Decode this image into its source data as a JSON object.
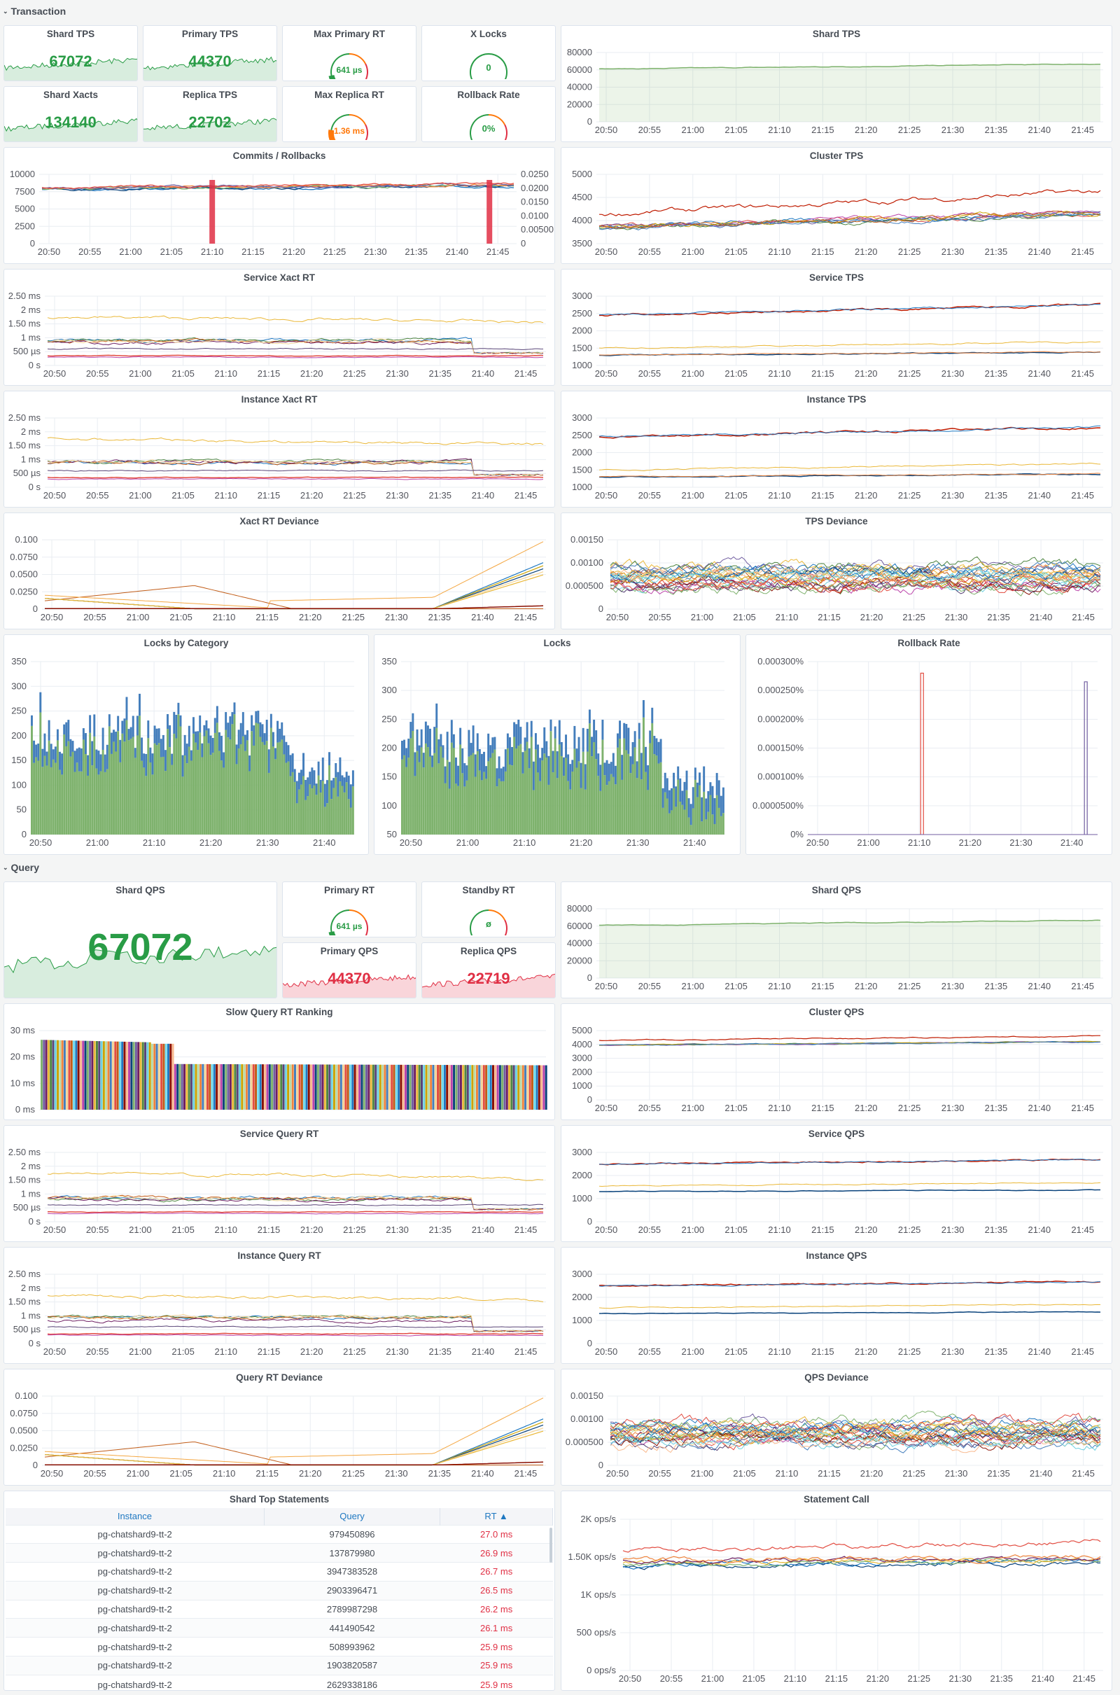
{
  "colors": {
    "green": "#299c46",
    "red": "#e02f44",
    "orange": "#ff780a",
    "blue": "#1f78c1",
    "grid": "#e9edf2",
    "axis": "#52545c"
  },
  "rows": {
    "transaction": "Transaction",
    "query": "Query",
    "collapse_icon": "chevron-down-icon"
  },
  "time_ticks": [
    "20:50",
    "20:55",
    "21:00",
    "21:05",
    "21:10",
    "21:15",
    "21:20",
    "21:25",
    "21:30",
    "21:35",
    "21:40",
    "21:45"
  ],
  "time_ticks_10m": [
    "20:50",
    "21:00",
    "21:10",
    "21:20",
    "21:30",
    "21:40"
  ],
  "transaction": {
    "stats": {
      "shard_tps": {
        "title": "Shard TPS",
        "value": "67072"
      },
      "primary_tps": {
        "title": "Primary TPS",
        "value": "44370"
      },
      "max_primary_rt": {
        "title": "Max Primary RT",
        "value": "641 µs"
      },
      "x_locks": {
        "title": "X Locks",
        "value": "0"
      },
      "shard_xacts": {
        "title": "Shard Xacts",
        "value": "134140"
      },
      "replica_tps": {
        "title": "Replica TPS",
        "value": "22702"
      },
      "max_replica_rt": {
        "title": "Max Replica RT",
        "value": "1.36 ms"
      },
      "rollback_rate": {
        "title": "Rollback Rate",
        "value": "0%"
      }
    },
    "charts": {
      "shard_tps": {
        "title": "Shard TPS"
      },
      "commits_rollbacks": {
        "title": "Commits / Rollbacks"
      },
      "cluster_tps": {
        "title": "Cluster TPS"
      },
      "service_xact_rt": {
        "title": "Service Xact RT"
      },
      "service_tps": {
        "title": "Service TPS"
      },
      "instance_xact_rt": {
        "title": "Instance Xact RT"
      },
      "instance_tps": {
        "title": "Instance TPS"
      },
      "xact_rt_deviance": {
        "title": "Xact RT Deviance"
      },
      "tps_deviance": {
        "title": "TPS Deviance"
      },
      "locks_by_category": {
        "title": "Locks by Category"
      },
      "locks": {
        "title": "Locks"
      },
      "rollback_rate": {
        "title": "Rollback Rate"
      }
    }
  },
  "query": {
    "stats": {
      "shard_qps": {
        "title": "Shard QPS",
        "value": "67072"
      },
      "primary_rt": {
        "title": "Primary RT",
        "value": "641 µs"
      },
      "standby_rt": {
        "title": "Standby RT",
        "value": "ø"
      },
      "primary_qps": {
        "title": "Primary QPS",
        "value": "44370"
      },
      "replica_qps": {
        "title": "Replica QPS",
        "value": "22719"
      }
    },
    "charts": {
      "shard_qps": {
        "title": "Shard QPS"
      },
      "slow_query_rt_ranking": {
        "title": "Slow Query RT Ranking"
      },
      "cluster_qps": {
        "title": "Cluster QPS"
      },
      "service_query_rt": {
        "title": "Service Query RT"
      },
      "service_qps": {
        "title": "Service QPS"
      },
      "instance_query_rt": {
        "title": "Instance Query RT"
      },
      "instance_qps": {
        "title": "Instance QPS"
      },
      "query_rt_deviance": {
        "title": "Query RT Deviance"
      },
      "qps_deviance": {
        "title": "QPS Deviance"
      },
      "statement_call": {
        "title": "Statement Call"
      }
    },
    "top_statements": {
      "title": "Shard Top Statements",
      "columns": [
        "Instance",
        "Query",
        "RT ▲"
      ],
      "rows": [
        [
          "pg-chatshard9-tt-2",
          "979450896",
          "27.0 ms"
        ],
        [
          "pg-chatshard9-tt-2",
          "137879980",
          "26.9 ms"
        ],
        [
          "pg-chatshard9-tt-2",
          "3947383528",
          "26.7 ms"
        ],
        [
          "pg-chatshard9-tt-2",
          "2903396471",
          "26.5 ms"
        ],
        [
          "pg-chatshard9-tt-2",
          "2789987298",
          "26.2 ms"
        ],
        [
          "pg-chatshard9-tt-2",
          "441490542",
          "26.1 ms"
        ],
        [
          "pg-chatshard9-tt-2",
          "508993962",
          "25.9 ms"
        ],
        [
          "pg-chatshard9-tt-2",
          "1903820587",
          "25.9 ms"
        ],
        [
          "pg-chatshard9-tt-2",
          "2629338186",
          "25.9 ms"
        ]
      ]
    }
  },
  "chart_data": [
    {
      "type": "area",
      "title": "Shard TPS",
      "x": [
        "20:50",
        "21:45"
      ],
      "series": [
        {
          "values": [
            61000,
            67000
          ]
        }
      ],
      "yticks": [
        "0",
        "20000",
        "40000",
        "60000",
        "80000"
      ],
      "ylim": [
        0,
        80000
      ]
    },
    {
      "type": "line",
      "title": "Commits / Rollbacks",
      "series": [
        {
          "values": [
            7800,
            8400
          ]
        }
      ],
      "yticks": [
        "0",
        "2500",
        "5000",
        "7500",
        "10000"
      ],
      "ylim": [
        0,
        10000
      ],
      "y2ticks": [
        "0",
        "0.00500",
        "0.0100",
        "0.0150",
        "0.0200",
        "0.0250"
      ],
      "y2lim": [
        0,
        0.025
      ],
      "rollback_spikes_at": [
        "21:10",
        "21:44"
      ]
    },
    {
      "type": "line",
      "title": "Cluster TPS",
      "yticks": [
        "3500",
        "4000",
        "4500",
        "5000"
      ],
      "ylim": [
        3500,
        5000
      ]
    },
    {
      "type": "line",
      "title": "Service Xact RT",
      "yticks": [
        "0 s",
        "500 µs",
        "1 ms",
        "1.50 ms",
        "2 ms",
        "2.50 ms"
      ],
      "ylim": [
        0,
        2.5
      ]
    },
    {
      "type": "line",
      "title": "Service TPS",
      "yticks": [
        "1000",
        "1500",
        "2000",
        "2500",
        "3000"
      ],
      "ylim": [
        1000,
        3000
      ]
    },
    {
      "type": "line",
      "title": "Instance Xact RT",
      "yticks": [
        "0 s",
        "500 µs",
        "1 ms",
        "1.50 ms",
        "2 ms",
        "2.50 ms"
      ],
      "ylim": [
        0,
        2.5
      ]
    },
    {
      "type": "line",
      "title": "Instance TPS",
      "yticks": [
        "1000",
        "1500",
        "2000",
        "2500",
        "3000"
      ],
      "ylim": [
        1000,
        3000
      ]
    },
    {
      "type": "line",
      "title": "Xact RT Deviance",
      "yticks": [
        "0",
        "0.0250",
        "0.0500",
        "0.0750",
        "0.100"
      ],
      "ylim": [
        0,
        0.1
      ]
    },
    {
      "type": "line",
      "title": "TPS Deviance",
      "yticks": [
        "0",
        "0.000500",
        "0.00100",
        "0.00150"
      ],
      "ylim": [
        0,
        0.0015
      ]
    },
    {
      "type": "bar",
      "title": "Locks by Category",
      "yticks": [
        "0",
        "50",
        "100",
        "150",
        "200",
        "250",
        "300",
        "350"
      ],
      "ylim": [
        0,
        350
      ]
    },
    {
      "type": "bar",
      "title": "Locks",
      "yticks": [
        "50",
        "100",
        "150",
        "200",
        "250",
        "300",
        "350"
      ],
      "ylim": [
        50,
        350
      ]
    },
    {
      "type": "line",
      "title": "Rollback Rate",
      "yticks": [
        "0%",
        "0.0000500%",
        "0.000100%",
        "0.000150%",
        "0.000200%",
        "0.000250%",
        "0.000300%"
      ],
      "ylim": [
        0,
        0.0003
      ],
      "spikes_at": [
        "21:10",
        "21:44"
      ]
    },
    {
      "type": "area",
      "title": "Shard QPS",
      "series": [
        {
          "values": [
            61000,
            67000
          ]
        }
      ],
      "yticks": [
        "0",
        "20000",
        "40000",
        "60000",
        "80000"
      ],
      "ylim": [
        0,
        80000
      ]
    },
    {
      "type": "bar",
      "title": "Slow Query RT Ranking",
      "yticks": [
        "0 ms",
        "10 ms",
        "20 ms",
        "30 ms"
      ],
      "ylim": [
        0,
        30
      ]
    },
    {
      "type": "line",
      "title": "Cluster QPS",
      "yticks": [
        "0",
        "1000",
        "2000",
        "3000",
        "4000",
        "5000"
      ],
      "ylim": [
        0,
        5000
      ]
    },
    {
      "type": "line",
      "title": "Service Query RT",
      "yticks": [
        "0 s",
        "500 µs",
        "1 ms",
        "1.50 ms",
        "2 ms",
        "2.50 ms"
      ],
      "ylim": [
        0,
        2.5
      ]
    },
    {
      "type": "line",
      "title": "Service QPS",
      "yticks": [
        "0",
        "1000",
        "2000",
        "3000"
      ],
      "ylim": [
        0,
        3000
      ]
    },
    {
      "type": "line",
      "title": "Instance Query RT",
      "yticks": [
        "0 s",
        "500 µs",
        "1 ms",
        "1.50 ms",
        "2 ms",
        "2.50 ms"
      ],
      "ylim": [
        0,
        2.5
      ]
    },
    {
      "type": "line",
      "title": "Instance QPS",
      "yticks": [
        "0",
        "1000",
        "2000",
        "3000"
      ],
      "ylim": [
        0,
        3000
      ]
    },
    {
      "type": "line",
      "title": "Query RT Deviance",
      "yticks": [
        "0",
        "0.0250",
        "0.0500",
        "0.0750",
        "0.100"
      ],
      "ylim": [
        0,
        0.1
      ]
    },
    {
      "type": "line",
      "title": "QPS Deviance",
      "yticks": [
        "0",
        "0.000500",
        "0.00100",
        "0.00150"
      ],
      "ylim": [
        0,
        0.0015
      ]
    },
    {
      "type": "line",
      "title": "Statement Call",
      "yticks": [
        "0 ops/s",
        "500 ops/s",
        "1K ops/s",
        "1.50K ops/s",
        "2K ops/s"
      ],
      "ylim": [
        0,
        2000
      ]
    }
  ]
}
